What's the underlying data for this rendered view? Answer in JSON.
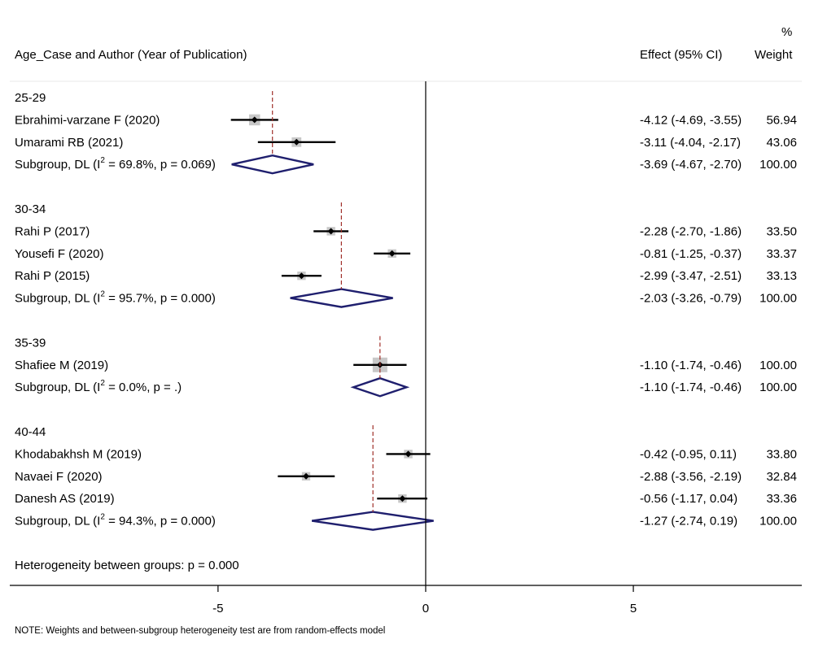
{
  "chart_data": {
    "type": "forest",
    "header": {
      "study_col": "Age_Case and Author (Year of Publication)",
      "effect_col": "Effect (95% CI)",
      "weight_col_top": "%",
      "weight_col": "Weight"
    },
    "groups": [
      {
        "label": "25-29",
        "studies": [
          {
            "name": "Ebrahimi-varzane F (2020)",
            "effect": -4.12,
            "lo": -4.69,
            "hi": -3.55,
            "weight": 56.94,
            "ci_text": "-4.12 (-4.69, -3.55)",
            "weight_text": "56.94"
          },
          {
            "name": "Umarami RB (2021)",
            "effect": -3.11,
            "lo": -4.04,
            "hi": -2.17,
            "weight": 43.06,
            "ci_text": "-3.11 (-4.04, -2.17)",
            "weight_text": "43.06"
          }
        ],
        "subtotal": {
          "prefix": "Subgroup, DL (I",
          "sup": "2",
          "suffix": " = 69.8%, p = 0.069)",
          "effect": -3.69,
          "lo": -4.67,
          "hi": -2.7,
          "ci_text": "-3.69 (-4.67, -2.70)",
          "weight_text": "100.00"
        }
      },
      {
        "label": "30-34",
        "studies": [
          {
            "name": "Rahi P (2017)",
            "effect": -2.28,
            "lo": -2.7,
            "hi": -1.86,
            "weight": 33.5,
            "ci_text": "-2.28 (-2.70, -1.86)",
            "weight_text": "33.50"
          },
          {
            "name": "Yousefi F (2020)",
            "effect": -0.81,
            "lo": -1.25,
            "hi": -0.37,
            "weight": 33.37,
            "ci_text": "-0.81 (-1.25, -0.37)",
            "weight_text": "33.37"
          },
          {
            "name": "Rahi P (2015)",
            "effect": -2.99,
            "lo": -3.47,
            "hi": -2.51,
            "weight": 33.13,
            "ci_text": "-2.99 (-3.47, -2.51)",
            "weight_text": "33.13"
          }
        ],
        "subtotal": {
          "prefix": "Subgroup, DL (I",
          "sup": "2",
          "suffix": " = 95.7%, p = 0.000)",
          "effect": -2.03,
          "lo": -3.26,
          "hi": -0.79,
          "ci_text": "-2.03 (-3.26, -0.79)",
          "weight_text": "100.00"
        }
      },
      {
        "label": "35-39",
        "studies": [
          {
            "name": "Shafiee M (2019)",
            "effect": -1.1,
            "lo": -1.74,
            "hi": -0.46,
            "weight": 100.0,
            "ci_text": "-1.10 (-1.74, -0.46)",
            "weight_text": "100.00"
          }
        ],
        "subtotal": {
          "prefix": "Subgroup, DL (I",
          "sup": "2",
          "suffix": " = 0.0%, p = .)",
          "effect": -1.1,
          "lo": -1.74,
          "hi": -0.46,
          "ci_text": "-1.10 (-1.74, -0.46)",
          "weight_text": "100.00"
        }
      },
      {
        "label": "40-44",
        "studies": [
          {
            "name": "Khodabakhsh M (2019)",
            "effect": -0.42,
            "lo": -0.95,
            "hi": 0.11,
            "weight": 33.8,
            "ci_text": "-0.42 (-0.95, 0.11)",
            "weight_text": "33.80"
          },
          {
            "name": "Navaei F (2020)",
            "effect": -2.88,
            "lo": -3.56,
            "hi": -2.19,
            "weight": 32.84,
            "ci_text": "-2.88 (-3.56, -2.19)",
            "weight_text": "32.84"
          },
          {
            "name": "Danesh AS (2019)",
            "effect": -0.56,
            "lo": -1.17,
            "hi": 0.04,
            "weight": 33.36,
            "ci_text": "-0.56 (-1.17, 0.04)",
            "weight_text": "33.36"
          }
        ],
        "subtotal": {
          "prefix": "Subgroup, DL (I",
          "sup": "2",
          "suffix": " = 94.3%, p = 0.000)",
          "effect": -1.27,
          "lo": -2.74,
          "hi": 0.19,
          "ci_text": "-1.27 (-2.74, 0.19)",
          "weight_text": "100.00"
        }
      }
    ],
    "heterogeneity": "Heterogeneity between groups: p = 0.000",
    "xaxis": {
      "ticks": [
        -5,
        0,
        5
      ],
      "tick_labels": [
        "-5",
        "0",
        "5"
      ],
      "min": -10.25,
      "max": 9.35,
      "null_line": 0
    },
    "note": "NOTE: Weights and between-subgroup heterogeneity test are from random-effects model",
    "colors": {
      "diamond": "#1f1f6e",
      "subgroup_line": "#a0302a",
      "weight_box": "#c8c8c8",
      "ci_line": "#000000"
    }
  }
}
